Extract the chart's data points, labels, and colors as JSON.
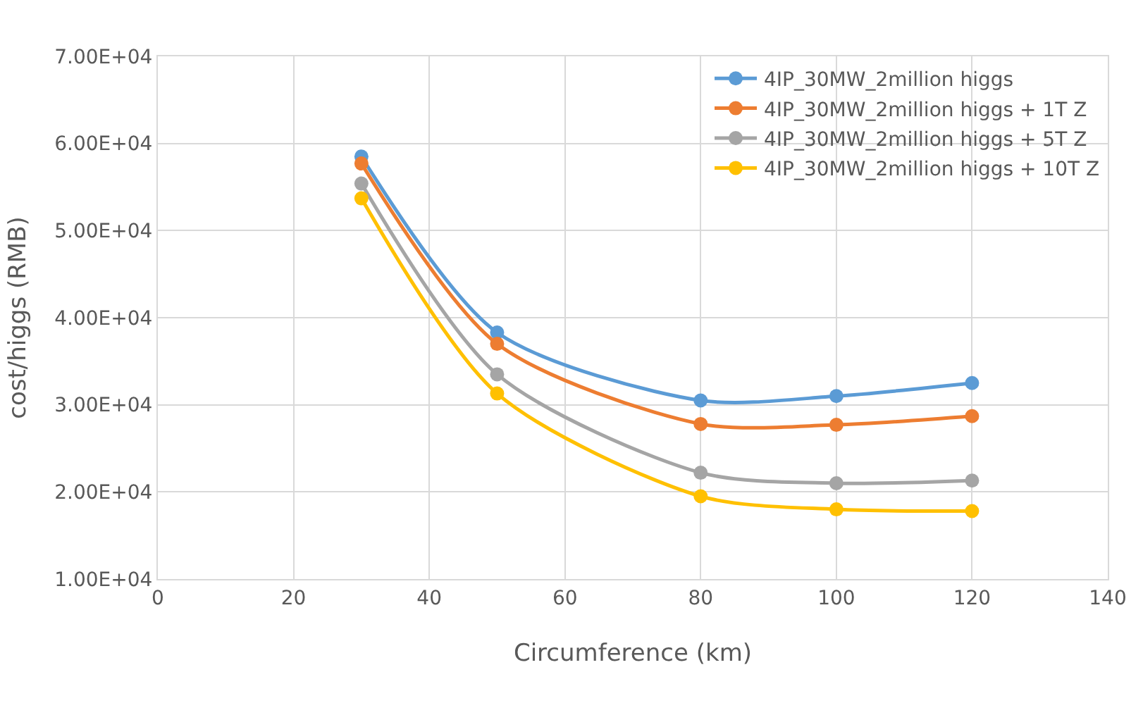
{
  "chart_data": {
    "type": "line",
    "xlabel": "Circumference (km)",
    "ylabel": "cost/higgs (RMB)",
    "x": [
      30,
      50,
      80,
      100,
      120
    ],
    "series": [
      {
        "name": "4IP_30MW_2million higgs",
        "color": "#5b9bd5",
        "values": [
          58500,
          38300,
          30500,
          31000,
          32500
        ]
      },
      {
        "name": "4IP_30MW_2million higgs + 1T Z",
        "color": "#ed7d31",
        "values": [
          57700,
          37000,
          27800,
          27700,
          28700
        ]
      },
      {
        "name": "4IP_30MW_2million higgs + 5T Z",
        "color": "#a5a5a5",
        "values": [
          55400,
          33500,
          22200,
          21000,
          21300
        ]
      },
      {
        "name": "4IP_30MW_2million higgs + 10T Z",
        "color": "#ffc000",
        "values": [
          53700,
          31300,
          19500,
          18000,
          17800
        ]
      }
    ],
    "xlim": [
      0,
      140
    ],
    "xticks": [
      0,
      20,
      40,
      60,
      80,
      100,
      120,
      140
    ],
    "ylim": [
      10000,
      70000
    ],
    "yticks": [
      {
        "value": 10000,
        "label": "1.00E+04"
      },
      {
        "value": 20000,
        "label": "2.00E+04"
      },
      {
        "value": 30000,
        "label": "3.00E+04"
      },
      {
        "value": 40000,
        "label": "4.00E+04"
      },
      {
        "value": 50000,
        "label": "5.00E+04"
      },
      {
        "value": 60000,
        "label": "6.00E+04"
      },
      {
        "value": 70000,
        "label": "7.00E+04"
      }
    ],
    "grid": true,
    "legend": "top right",
    "marker": "circle",
    "line_style": "solid"
  }
}
